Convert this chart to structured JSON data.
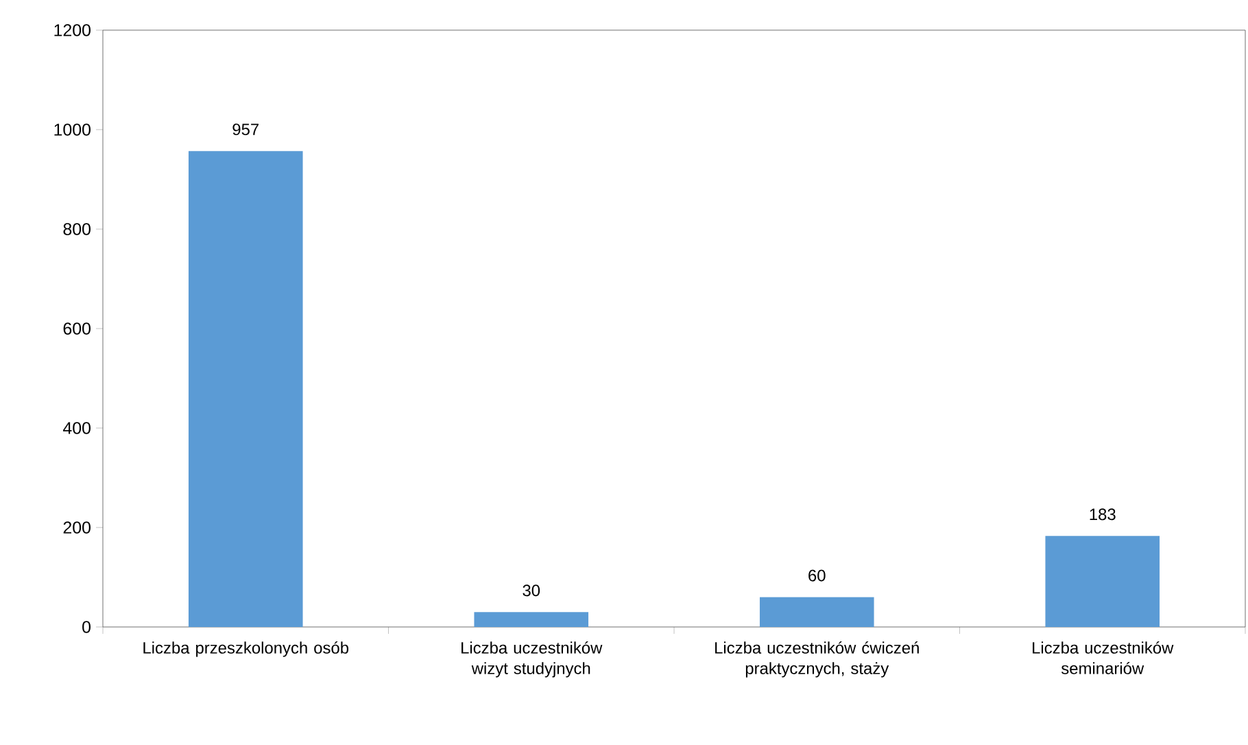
{
  "chart_data": {
    "type": "bar",
    "categories": [
      "Liczba przeszkolonych osób",
      "Liczba uczestników wizyt studyjnych",
      "Liczba uczestników ćwiczeń praktycznych, staży",
      "Liczba uczestników seminariów"
    ],
    "values": [
      957,
      30,
      60,
      183
    ],
    "color": "#5b9bd5",
    "ylim": [
      0,
      1200
    ],
    "yticks": [
      0,
      200,
      400,
      600,
      800,
      1000,
      1200
    ],
    "data_labels": true
  }
}
